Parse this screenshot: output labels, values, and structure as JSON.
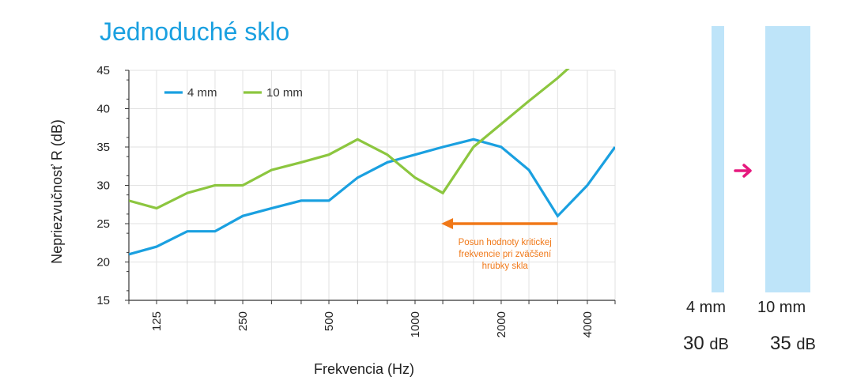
{
  "title": "Jednoduché sklo",
  "chart_data": {
    "type": "line",
    "title": "Jednoduché sklo",
    "xlabel": "Frekvencia (Hz)",
    "ylabel": "Nepriezvučnosť R (dB)",
    "ylim": [
      15,
      45
    ],
    "y_ticks": [
      15,
      20,
      25,
      30,
      35,
      40,
      45
    ],
    "x_scale": "log",
    "x_tick_labels": [
      "125",
      "250",
      "500",
      "1000",
      "2000",
      "4000"
    ],
    "x": [
      100,
      125,
      160,
      200,
      250,
      315,
      400,
      500,
      630,
      800,
      1000,
      1250,
      1600,
      2000,
      2500,
      3150,
      4000,
      5000
    ],
    "grid": true,
    "legend_position": "top-left",
    "series": [
      {
        "name": "4 mm",
        "color": "#1aa0e0",
        "values": [
          21,
          22,
          24,
          24,
          26,
          27,
          28,
          28,
          31,
          33,
          34,
          35,
          36,
          35,
          32,
          26,
          30,
          35
        ]
      },
      {
        "name": "10 mm",
        "color": "#8cc63f",
        "values": [
          28,
          27,
          29,
          30,
          30,
          32,
          33,
          34,
          36,
          34,
          31,
          29,
          35,
          38,
          41,
          44,
          47.5,
          null
        ]
      }
    ],
    "annotation": {
      "text_lines": [
        "Posun hodnoty kritickej",
        "frekvencie pri zväčšení",
        "hrúbky skla"
      ],
      "color": "#f07818",
      "arrow_from_x": 3150,
      "arrow_to_x": 1250,
      "arrow_y": 25
    }
  },
  "thickness_panel": {
    "glass_color": "#bee4f9",
    "arrow_color": "#e6197e",
    "items": [
      {
        "label": "4 mm",
        "db_value": "30",
        "db_unit": "dB"
      },
      {
        "label": "10 mm",
        "db_value": "35",
        "db_unit": "dB"
      }
    ]
  }
}
